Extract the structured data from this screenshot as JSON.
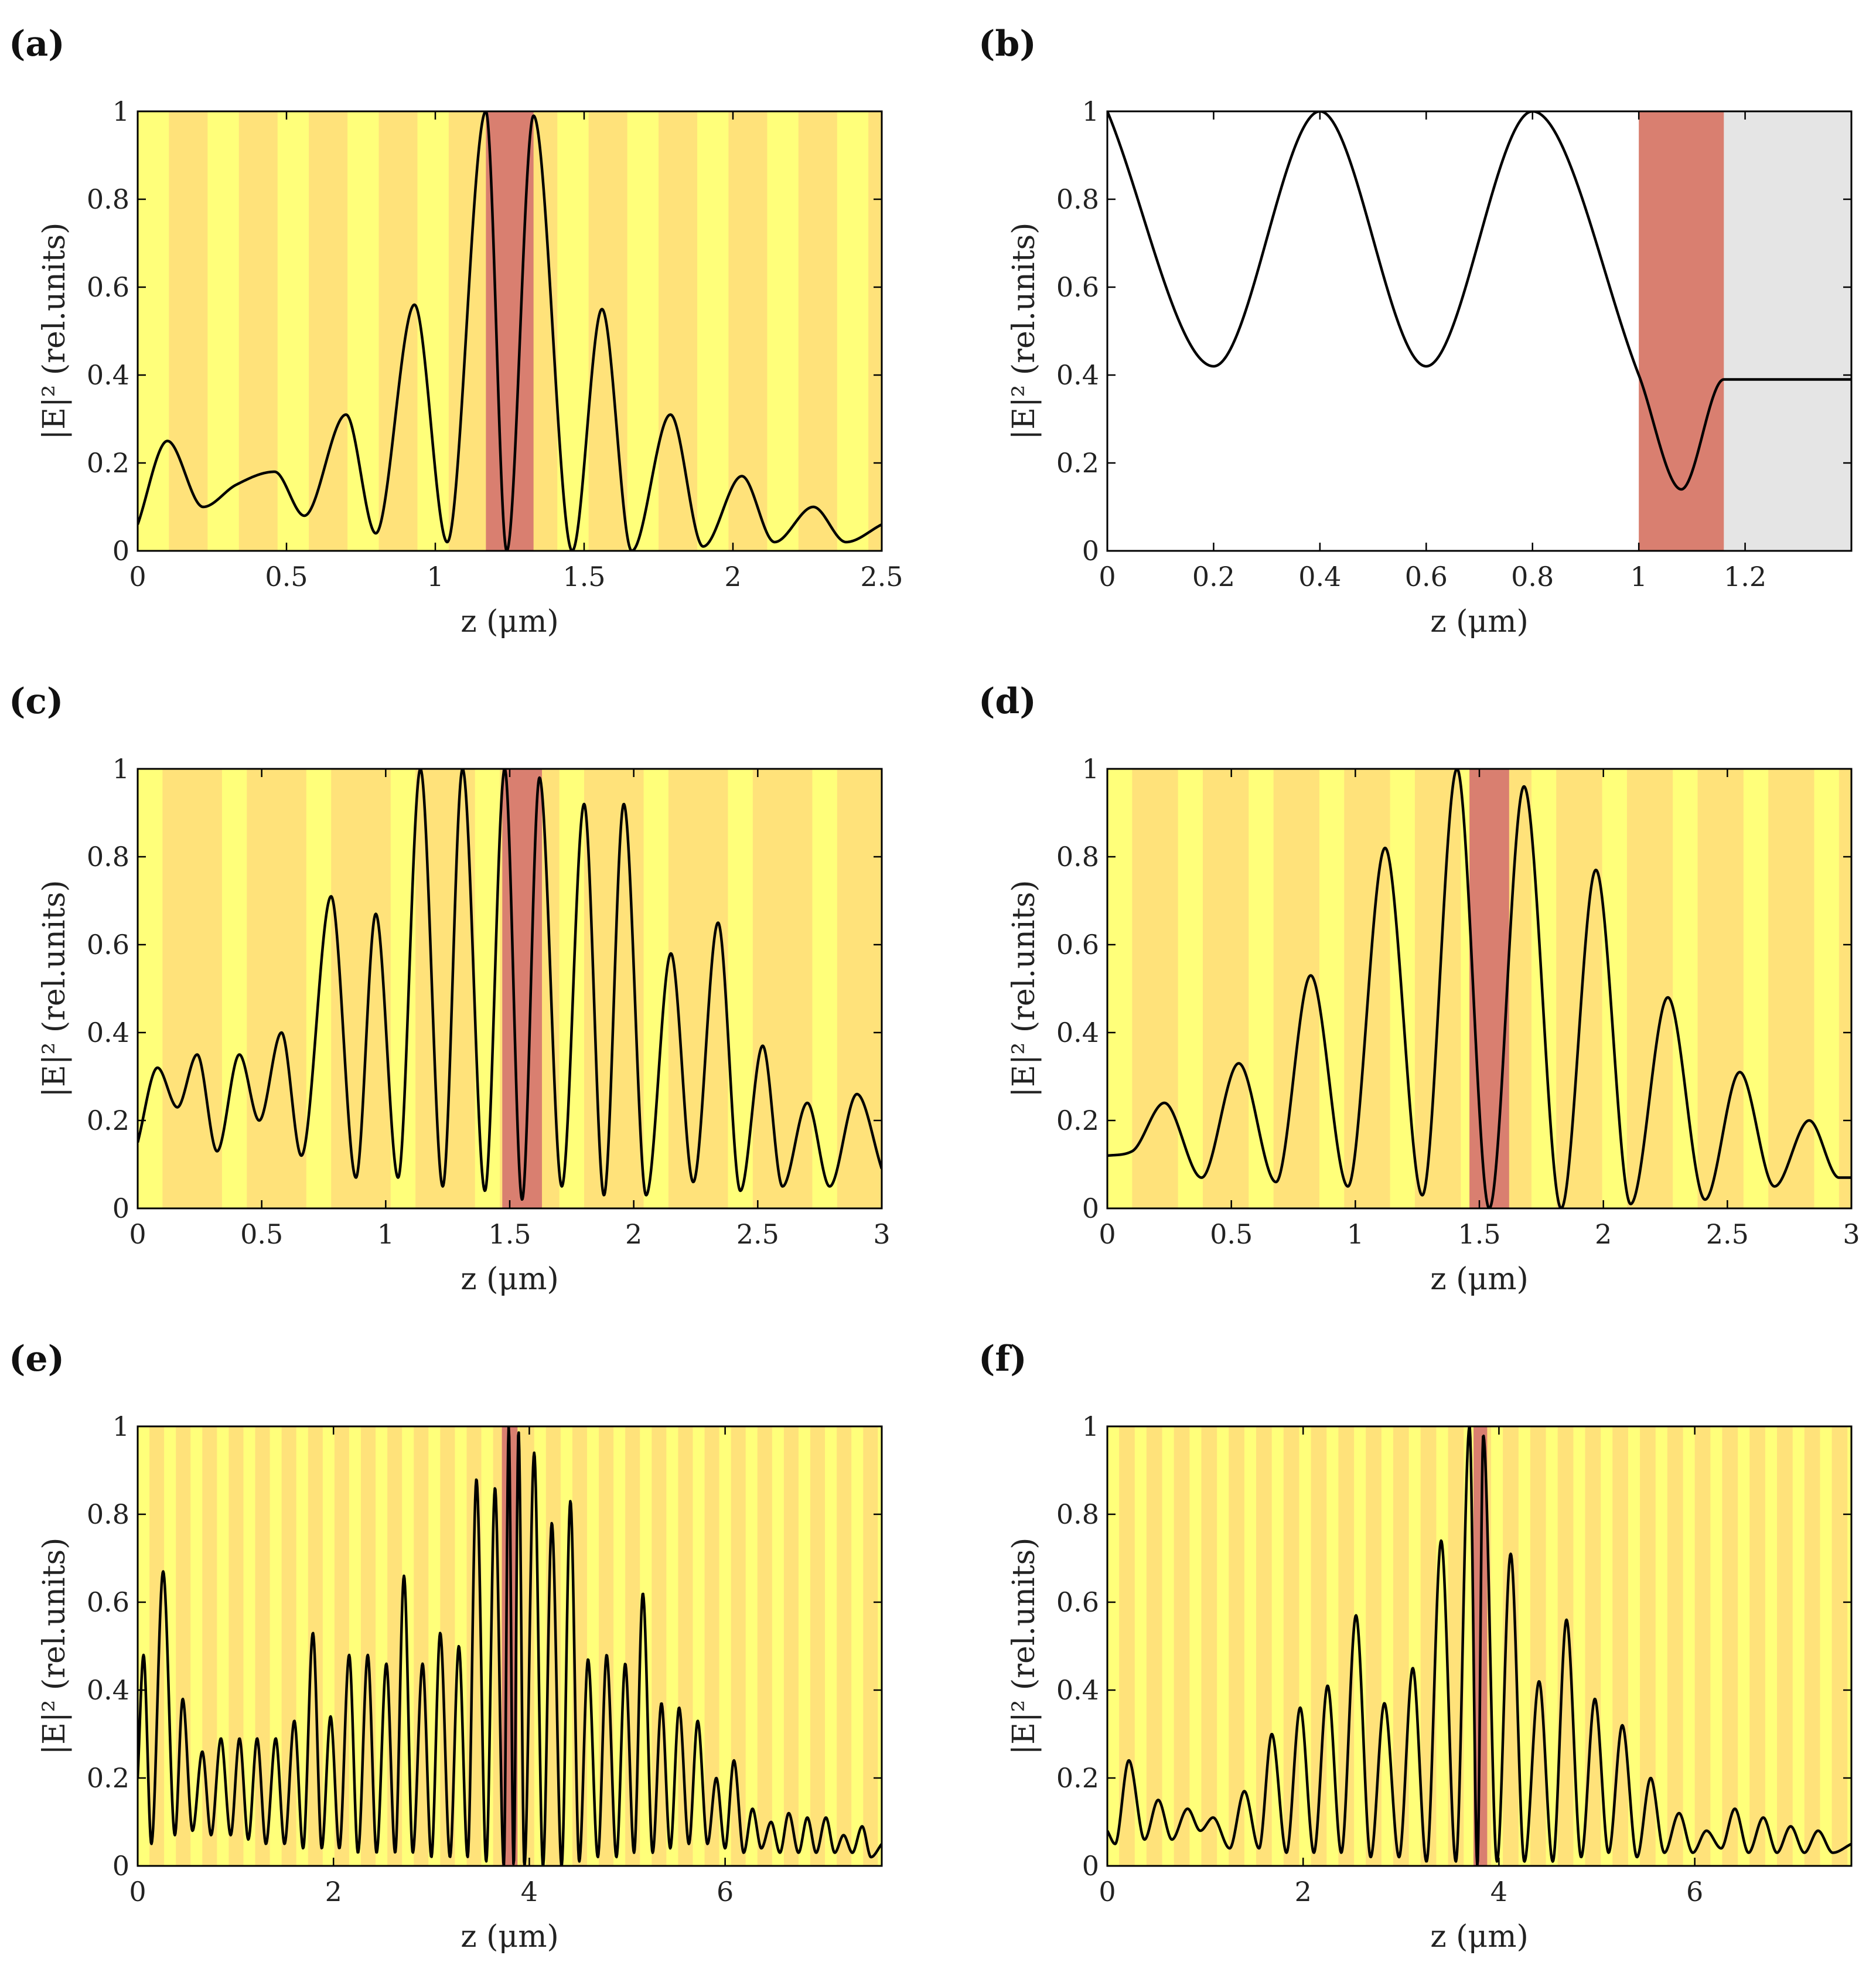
{
  "figure": {
    "ylabel": "|E|² (rel.units)",
    "xlabel": "z (μm)"
  },
  "colors": {
    "layer_light": "#FFFF7A",
    "layer_dark": "#FFE27A",
    "defect": "#D97F70",
    "substrate": "#E5E5E5",
    "curve": "#000000",
    "frame": "#000000"
  },
  "chart_data": [
    {
      "id": "a",
      "label": "(a)",
      "type": "line",
      "xlabel": "z (μm)",
      "ylabel": "|E|² (rel.units)",
      "xlim": [
        0,
        2.5
      ],
      "ylim": [
        0,
        1
      ],
      "xticks": [
        0,
        0.5,
        1,
        1.5,
        2,
        2.5
      ],
      "yticks": [
        0,
        0.2,
        0.4,
        0.6,
        0.8,
        1
      ],
      "bg": "layers",
      "layers": {
        "start": 0,
        "period": 0.235,
        "dark_from": 0.105,
        "defect": [
          1.17,
          1.33
        ]
      },
      "x": [
        0,
        0.1,
        0.22,
        0.33,
        0.46,
        0.56,
        0.7,
        0.8,
        0.93,
        1.04,
        1.17,
        1.24,
        1.33,
        1.46,
        1.56,
        1.66,
        1.79,
        1.9,
        2.03,
        2.14,
        2.27,
        2.38,
        2.5
      ],
      "y": [
        0.06,
        0.25,
        0.1,
        0.15,
        0.18,
        0.08,
        0.31,
        0.04,
        0.56,
        0.02,
        1.0,
        0.0,
        0.99,
        0.0,
        0.55,
        0.0,
        0.31,
        0.01,
        0.17,
        0.02,
        0.1,
        0.02,
        0.06
      ]
    },
    {
      "id": "b",
      "label": "(b)",
      "type": "line",
      "xlabel": "z (μm)",
      "ylabel": "|E|² (rel.units)",
      "xlim": [
        0,
        1.4
      ],
      "ylim": [
        0,
        1
      ],
      "xticks": [
        0,
        0.2,
        0.4,
        0.6,
        0.8,
        1,
        1.2
      ],
      "yticks": [
        0,
        0.2,
        0.4,
        0.6,
        0.8,
        1
      ],
      "bg": "plain",
      "layers": {
        "defect": [
          1.0,
          1.16
        ],
        "substrate": [
          1.16,
          1.4
        ]
      },
      "x": [
        0,
        0.2,
        0.4,
        0.6,
        0.8,
        1.0,
        1.08,
        1.16,
        1.4
      ],
      "y": [
        1.0,
        0.42,
        1.0,
        0.42,
        1.0,
        0.4,
        0.14,
        0.39,
        0.39
      ]
    },
    {
      "id": "c",
      "label": "(c)",
      "type": "line",
      "xlabel": "z (μm)",
      "ylabel": "|E|² (rel.units)",
      "xlim": [
        0,
        3
      ],
      "ylim": [
        0,
        1
      ],
      "xticks": [
        0,
        0.5,
        1,
        1.5,
        2,
        2.5,
        3
      ],
      "yticks": [
        0,
        0.2,
        0.4,
        0.6,
        0.8,
        1
      ],
      "bg": "layers",
      "layers": {
        "start": 0,
        "period": 0.34,
        "dark_from": 0.1,
        "defect": [
          1.47,
          1.63
        ]
      },
      "x": [
        0,
        0.08,
        0.16,
        0.24,
        0.32,
        0.41,
        0.49,
        0.58,
        0.66,
        0.78,
        0.88,
        0.96,
        1.05,
        1.14,
        1.23,
        1.31,
        1.4,
        1.48,
        1.55,
        1.62,
        1.71,
        1.8,
        1.88,
        1.96,
        2.05,
        2.15,
        2.24,
        2.34,
        2.43,
        2.52,
        2.6,
        2.7,
        2.79,
        2.9,
        3.0
      ],
      "y": [
        0.15,
        0.32,
        0.23,
        0.35,
        0.13,
        0.35,
        0.2,
        0.4,
        0.12,
        0.71,
        0.07,
        0.67,
        0.07,
        1.0,
        0.05,
        1.0,
        0.04,
        1.0,
        0.02,
        0.98,
        0.05,
        0.92,
        0.03,
        0.92,
        0.03,
        0.58,
        0.06,
        0.65,
        0.04,
        0.37,
        0.05,
        0.24,
        0.05,
        0.26,
        0.09
      ]
    },
    {
      "id": "d",
      "label": "(d)",
      "type": "line",
      "xlabel": "z (μm)",
      "ylabel": "|E|² (rel.units)",
      "xlim": [
        0,
        3
      ],
      "ylim": [
        0,
        1
      ],
      "xticks": [
        0,
        0.5,
        1,
        1.5,
        2,
        2.5,
        3
      ],
      "yticks": [
        0,
        0.2,
        0.4,
        0.6,
        0.8,
        1
      ],
      "bg": "layers",
      "layers": {
        "start": 0,
        "period": 0.285,
        "dark_from": 0.1,
        "defect": [
          1.46,
          1.62
        ]
      },
      "x": [
        0,
        0.1,
        0.23,
        0.38,
        0.53,
        0.68,
        0.82,
        0.97,
        1.12,
        1.27,
        1.41,
        1.54,
        1.68,
        1.83,
        1.97,
        2.11,
        2.26,
        2.41,
        2.55,
        2.69,
        2.83,
        2.95,
        3.0
      ],
      "y": [
        0.12,
        0.13,
        0.24,
        0.07,
        0.33,
        0.06,
        0.53,
        0.05,
        0.82,
        0.03,
        1.0,
        0.0,
        0.96,
        0.0,
        0.77,
        0.01,
        0.48,
        0.02,
        0.31,
        0.05,
        0.2,
        0.07,
        0.07
      ]
    },
    {
      "id": "e",
      "label": "(e)",
      "type": "line",
      "xlabel": "z (μm)",
      "ylabel": "|E|² (rel.units)",
      "xlim": [
        0,
        7.6
      ],
      "ylim": [
        0,
        1
      ],
      "xticks": [
        0,
        2,
        4,
        6
      ],
      "yticks": [
        0,
        0.2,
        0.4,
        0.6,
        0.8,
        1
      ],
      "bg": "layers",
      "layers": {
        "start": 0,
        "period": 0.27,
        "dark_from": 0.12,
        "defect": [
          3.72,
          3.88
        ]
      },
      "x": [
        0,
        0.06,
        0.14,
        0.26,
        0.38,
        0.46,
        0.56,
        0.66,
        0.75,
        0.85,
        0.95,
        1.04,
        1.13,
        1.22,
        1.31,
        1.41,
        1.5,
        1.6,
        1.69,
        1.79,
        1.88,
        1.97,
        2.06,
        2.16,
        2.25,
        2.35,
        2.44,
        2.54,
        2.63,
        2.72,
        2.81,
        2.91,
        3.0,
        3.09,
        3.19,
        3.28,
        3.37,
        3.46,
        3.56,
        3.65,
        3.74,
        3.79,
        3.84,
        3.89,
        3.95,
        4.05,
        4.14,
        4.23,
        4.33,
        4.42,
        4.51,
        4.6,
        4.7,
        4.79,
        4.89,
        4.98,
        5.07,
        5.16,
        5.26,
        5.35,
        5.44,
        5.53,
        5.63,
        5.72,
        5.82,
        5.91,
        6.0,
        6.09,
        6.19,
        6.28,
        6.37,
        6.47,
        6.56,
        6.65,
        6.75,
        6.84,
        6.93,
        7.03,
        7.12,
        7.21,
        7.3,
        7.4,
        7.49,
        7.6
      ],
      "y": [
        0.2,
        0.48,
        0.05,
        0.67,
        0.07,
        0.38,
        0.08,
        0.26,
        0.07,
        0.29,
        0.07,
        0.29,
        0.06,
        0.29,
        0.05,
        0.29,
        0.05,
        0.33,
        0.04,
        0.53,
        0.04,
        0.34,
        0.04,
        0.48,
        0.03,
        0.48,
        0.03,
        0.46,
        0.03,
        0.66,
        0.03,
        0.46,
        0.02,
        0.53,
        0.02,
        0.5,
        0.02,
        0.88,
        0.01,
        0.86,
        0.0,
        1.0,
        0.0,
        0.99,
        0.0,
        0.94,
        0.0,
        0.78,
        0.0,
        0.83,
        0.01,
        0.47,
        0.02,
        0.48,
        0.02,
        0.46,
        0.03,
        0.62,
        0.03,
        0.37,
        0.04,
        0.36,
        0.05,
        0.33,
        0.05,
        0.2,
        0.04,
        0.24,
        0.03,
        0.13,
        0.04,
        0.1,
        0.03,
        0.12,
        0.03,
        0.11,
        0.03,
        0.11,
        0.03,
        0.07,
        0.03,
        0.09,
        0.02,
        0.05
      ]
    },
    {
      "id": "f",
      "label": "(f)",
      "type": "line",
      "xlabel": "z (μm)",
      "ylabel": "|E|² (rel.units)",
      "xlim": [
        0,
        7.6
      ],
      "ylim": [
        0,
        1
      ],
      "xticks": [
        0,
        2,
        4,
        6
      ],
      "yticks": [
        0,
        0.2,
        0.4,
        0.6,
        0.8,
        1
      ],
      "bg": "layers",
      "layers": {
        "start": 0,
        "period": 0.28,
        "dark_from": 0.12,
        "defect": [
          3.74,
          3.88
        ]
      },
      "x": [
        0,
        0.08,
        0.22,
        0.38,
        0.52,
        0.66,
        0.82,
        0.95,
        1.08,
        1.25,
        1.4,
        1.55,
        1.68,
        1.83,
        1.97,
        2.11,
        2.25,
        2.39,
        2.54,
        2.69,
        2.83,
        2.98,
        3.12,
        3.26,
        3.41,
        3.56,
        3.7,
        3.78,
        3.84,
        3.98,
        4.12,
        4.26,
        4.41,
        4.55,
        4.69,
        4.84,
        4.98,
        5.12,
        5.26,
        5.41,
        5.55,
        5.69,
        5.84,
        5.98,
        6.12,
        6.27,
        6.41,
        6.55,
        6.7,
        6.84,
        6.98,
        7.12,
        7.26,
        7.41,
        7.6
      ],
      "y": [
        0.08,
        0.05,
        0.24,
        0.06,
        0.15,
        0.06,
        0.13,
        0.08,
        0.11,
        0.04,
        0.17,
        0.04,
        0.3,
        0.03,
        0.36,
        0.03,
        0.41,
        0.03,
        0.57,
        0.02,
        0.37,
        0.02,
        0.45,
        0.01,
        0.74,
        0.01,
        1.0,
        0.0,
        0.98,
        0.01,
        0.71,
        0.01,
        0.42,
        0.01,
        0.56,
        0.02,
        0.38,
        0.03,
        0.32,
        0.02,
        0.2,
        0.03,
        0.12,
        0.03,
        0.08,
        0.04,
        0.13,
        0.03,
        0.11,
        0.03,
        0.09,
        0.03,
        0.08,
        0.03,
        0.05
      ]
    }
  ]
}
